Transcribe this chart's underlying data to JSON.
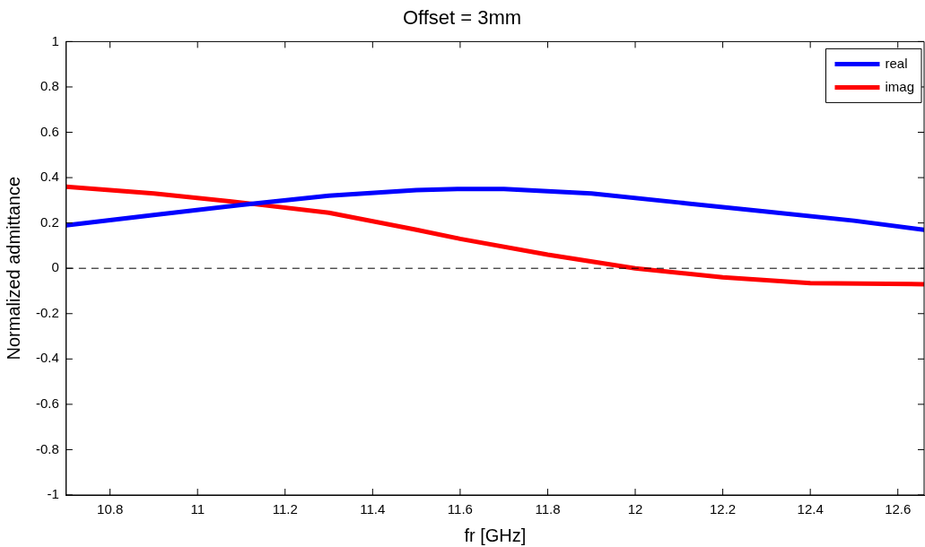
{
  "chart_data": {
    "type": "line",
    "title": "Offset = 3mm",
    "xlabel": "fr [GHz]",
    "ylabel": "Normalized admittance",
    "xlim": [
      10.7,
      12.66
    ],
    "xticks": [
      10.8,
      11,
      11.2,
      11.4,
      11.6,
      11.8,
      12,
      12.2,
      12.4,
      12.6
    ],
    "ylim": [
      -1,
      1
    ],
    "yticks": [
      -1,
      -0.8,
      -0.6,
      -0.4,
      -0.2,
      0,
      0.2,
      0.4,
      0.6,
      0.8,
      1
    ],
    "grid": false,
    "legend": "top right",
    "marker": "none",
    "line_style": "solid",
    "ref_lines": [
      {
        "axis": "y",
        "value": 0,
        "color": "#000000",
        "line_style": "dashed"
      }
    ],
    "series": [
      {
        "name": "real",
        "color": "#0000ff",
        "x": [
          10.7,
          10.9,
          11.1,
          11.3,
          11.5,
          11.6,
          11.7,
          11.9,
          12.1,
          12.3,
          12.5,
          12.66
        ],
        "values": [
          0.19,
          0.235,
          0.28,
          0.32,
          0.345,
          0.35,
          0.35,
          0.33,
          0.29,
          0.25,
          0.21,
          0.17
        ]
      },
      {
        "name": "imag",
        "color": "#ff0000",
        "x": [
          10.7,
          10.9,
          11.1,
          11.3,
          11.5,
          11.6,
          11.8,
          12.0,
          12.2,
          12.4,
          12.66
        ],
        "values": [
          0.36,
          0.33,
          0.29,
          0.245,
          0.17,
          0.13,
          0.06,
          0.0,
          -0.04,
          -0.065,
          -0.07
        ]
      }
    ]
  }
}
